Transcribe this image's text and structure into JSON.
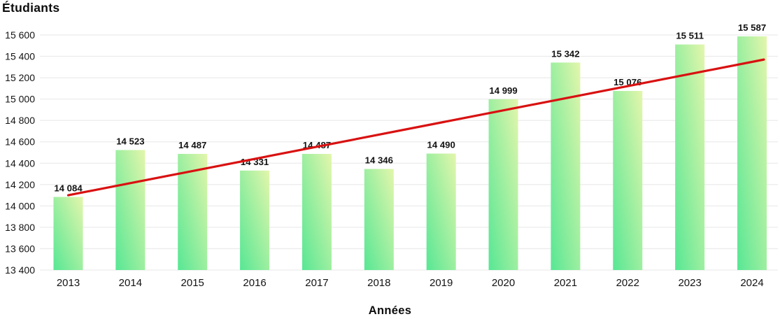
{
  "chart": {
    "title": "Étudiants",
    "x_axis_title": "Années"
  },
  "chart_data": {
    "type": "bar",
    "title": "Étudiants",
    "xlabel": "Années",
    "ylabel": "Étudiants",
    "categories": [
      "2013",
      "2014",
      "2015",
      "2016",
      "2017",
      "2018",
      "2019",
      "2020",
      "2021",
      "2022",
      "2023",
      "2024"
    ],
    "values": [
      14084,
      14523,
      14487,
      14331,
      14487,
      14346,
      14490,
      14999,
      15342,
      15076,
      15511,
      15587
    ],
    "value_labels": [
      "14 084",
      "14 523",
      "14 487",
      "14 331",
      "14 487",
      "14 346",
      "14 490",
      "14 999",
      "15 342",
      "15 076",
      "15 511",
      "15 587"
    ],
    "ylim": [
      13400,
      15600
    ],
    "y_tick_step": 200,
    "y_tick_labels": [
      "13 400",
      "13 600",
      "13 800",
      "14 000",
      "14 200",
      "14 400",
      "14 600",
      "14 800",
      "15 000",
      "15 200",
      "15 400",
      "15 600"
    ],
    "grid": "horizontal",
    "legend": "none",
    "trendline": {
      "type": "linear",
      "start_value": 14100,
      "end_value": 15370,
      "color": "#d91111"
    },
    "bar_color_top": "#e3f6ac",
    "bar_color_bottom": "#57e794",
    "grid_color": "#ececec",
    "text_color": "#131313"
  }
}
